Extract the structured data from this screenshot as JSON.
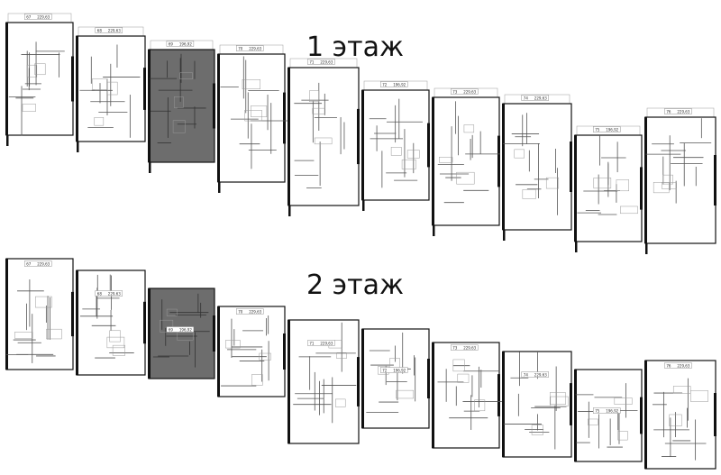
{
  "floors": [
    {
      "title": "1 этаж",
      "units": [
        {
          "number": "67",
          "area": "229,63"
        },
        {
          "number": "68",
          "area": "229,63"
        },
        {
          "number": "69",
          "area": "196,92"
        },
        {
          "number": "70",
          "area": "229,63"
        },
        {
          "number": "71",
          "area": "229,63"
        },
        {
          "number": "72",
          "area": "196,92"
        },
        {
          "number": "73",
          "area": "229,63"
        },
        {
          "number": "74",
          "area": "229,63"
        },
        {
          "number": "75",
          "area": "196,92"
        },
        {
          "number": "76",
          "area": "229,63"
        }
      ]
    },
    {
      "title": "2 этаж",
      "units": [
        {
          "number": "67",
          "area": "229,63"
        },
        {
          "number": "68",
          "area": "229,63"
        },
        {
          "number": "69",
          "area": "196,92"
        },
        {
          "number": "70",
          "area": "229,63"
        },
        {
          "number": "71",
          "area": "229,63"
        },
        {
          "number": "72",
          "area": "196,92"
        },
        {
          "number": "73",
          "area": "229,63"
        },
        {
          "number": "74",
          "area": "229,63"
        },
        {
          "number": "75",
          "area": "196,92"
        },
        {
          "number": "76",
          "area": "229,63"
        }
      ]
    }
  ]
}
